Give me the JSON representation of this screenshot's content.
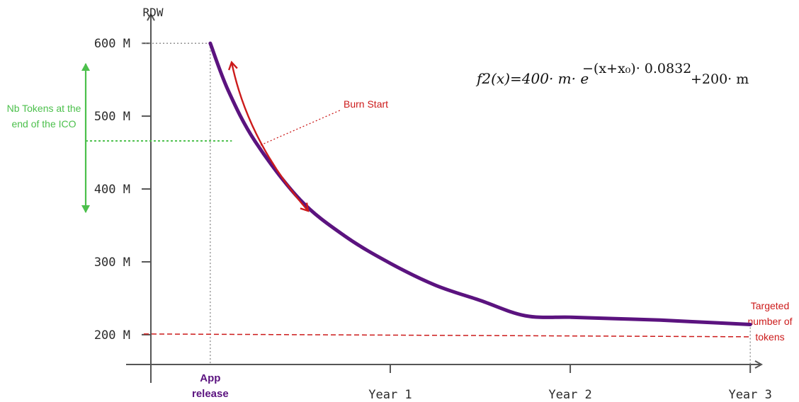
{
  "chart_data": {
    "type": "line",
    "ylabel": "RDW",
    "y_ticks": [
      {
        "value": 600,
        "label": "600 M"
      },
      {
        "value": 500,
        "label": "500 M"
      },
      {
        "value": 400,
        "label": "400 M"
      },
      {
        "value": 300,
        "label": "300 M"
      },
      {
        "value": 200,
        "label": "200 M"
      }
    ],
    "x_ticks": [
      {
        "value": 0,
        "label": "App",
        "label2": "release"
      },
      {
        "value": 1,
        "label": "Year 1"
      },
      {
        "value": 2,
        "label": "Year 2"
      },
      {
        "value": 3,
        "label": "Year 3"
      }
    ],
    "xlim": [
      -0.33,
      3.2
    ],
    "ylim": [
      128,
      640
    ],
    "series": [
      {
        "color": "#5b137f",
        "x": [
          0,
          0.1,
          0.25,
          0.5,
          0.75,
          1.0,
          1.25,
          1.5,
          1.75,
          2.0,
          2.25,
          2.5,
          2.75,
          3.0
        ],
        "y": [
          600,
          535,
          465,
          385,
          335,
          298,
          268,
          247,
          226,
          224,
          222,
          220,
          217,
          214
        ]
      }
    ],
    "target_line": {
      "value": 201,
      "label_lines": [
        "Targeted",
        "number of",
        "tokens"
      ],
      "color": "#cc1b1b"
    },
    "ico_line": {
      "value": 466,
      "label_lines": [
        "Nb Tokens at the",
        "end of the ICO"
      ],
      "color": "#4cc04c"
    },
    "burn_annotation": {
      "label": "Burn Start",
      "color": "#cc1b1b"
    },
    "formula": {
      "lhs": "f2(x)=400· m· e",
      "exponent": "−(x+x₀)· 0.0832",
      "rhs": "+200· m"
    },
    "colors": {
      "axis": "#555555",
      "curve": "#5b137f",
      "red": "#cc1b1b",
      "green": "#4cc04c"
    }
  }
}
